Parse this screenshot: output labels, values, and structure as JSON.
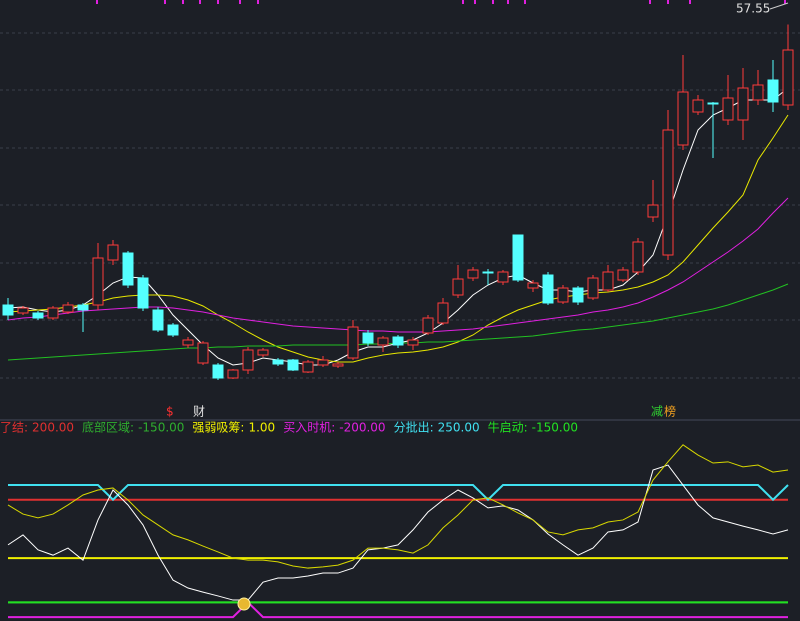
{
  "chart_data": [
    {
      "type": "candlestick",
      "open": [
        29.5,
        28.7,
        28.7,
        28.2,
        28.8,
        29.5,
        29.5,
        34.0,
        34.7,
        32.2,
        29.0,
        27.5,
        25.5,
        23.7,
        23.5,
        22.2,
        23.0,
        24.5,
        24.0,
        24.0,
        22.8,
        23.5,
        23.4,
        24.2,
        26.7,
        25.5,
        26.3,
        25.5,
        26.7,
        27.7,
        30.5,
        32.2,
        32.8,
        31.8,
        36.5,
        31.2,
        32.5,
        29.8,
        31.2,
        30.2,
        31.0,
        32.0,
        32.8,
        38.3,
        34.5,
        45.5,
        48.8,
        49.7,
        48.0,
        48.0,
        50.0,
        52.0,
        49.5
      ],
      "high": [
        30.2,
        29.4,
        28.9,
        29.4,
        29.8,
        29.7,
        35.7,
        36.0,
        34.9,
        32.5,
        29.3,
        27.7,
        26.3,
        25.9,
        23.7,
        23.1,
        25.3,
        25.2,
        24.2,
        24.1,
        24.0,
        24.4,
        23.8,
        28.0,
        27.0,
        26.4,
        26.5,
        26.3,
        28.5,
        30.2,
        33.5,
        33.3,
        33.1,
        33.0,
        36.5,
        32.0,
        32.8,
        31.5,
        31.4,
        32.5,
        33.5,
        33.3,
        36.2,
        42.0,
        49.0,
        54.5,
        50.5,
        49.8,
        52.5,
        53.2,
        53.0,
        54.0,
        57.55
      ],
      "low": [
        28.0,
        28.5,
        28.0,
        28.0,
        28.6,
        26.8,
        29.0,
        33.5,
        31.2,
        28.9,
        26.8,
        26.3,
        25.2,
        23.5,
        22.0,
        22.1,
        22.6,
        24.3,
        23.4,
        22.9,
        22.7,
        23.3,
        23.2,
        24.0,
        25.4,
        24.8,
        25.2,
        25.0,
        26.5,
        27.5,
        30.2,
        31.9,
        31.5,
        31.5,
        31.8,
        30.8,
        29.5,
        29.6,
        29.5,
        30.0,
        30.8,
        31.8,
        32.5,
        37.8,
        34.0,
        45.0,
        48.5,
        44.2,
        47.5,
        46.0,
        49.5,
        48.8,
        49.0
      ],
      "close": [
        28.5,
        29.2,
        28.2,
        29.2,
        29.5,
        29.0,
        34.2,
        35.5,
        31.5,
        29.2,
        27.0,
        26.5,
        26.0,
        25.7,
        22.2,
        23.0,
        25.0,
        25.0,
        23.6,
        23.0,
        23.8,
        24.0,
        23.6,
        27.3,
        25.7,
        26.2,
        25.5,
        26.0,
        28.2,
        29.7,
        32.1,
        33.0,
        32.7,
        32.8,
        32.0,
        31.7,
        29.7,
        31.2,
        29.8,
        32.2,
        32.8,
        33.0,
        35.8,
        39.5,
        47.0,
        50.8,
        50.0,
        49.6,
        50.2,
        51.2,
        51.5,
        49.8,
        55.0
      ],
      "up_color": "#ff3b3b",
      "down_color": "#54ffff",
      "max_label": "57.55",
      "ylim": [
        20,
        60
      ],
      "series": [
        {
          "color": "#ffffff",
          "values": [
            29.2,
            29.3,
            29.0,
            28.8,
            29.0,
            29.5,
            30.5,
            31.7,
            32.3,
            32.2,
            30.5,
            28.5,
            27.0,
            25.5,
            24.2,
            23.5,
            23.7,
            24.2,
            24.0,
            23.8,
            23.5,
            23.5,
            24.0,
            24.8,
            25.3,
            25.3,
            25.7,
            26.0,
            26.7,
            27.7,
            29.0,
            30.5,
            31.5,
            32.2,
            32.5,
            31.7,
            31.0,
            31.0,
            30.8,
            31.0,
            31.0,
            31.5,
            32.8,
            34.5,
            38.5,
            43.0,
            47.0,
            48.5,
            49.2,
            50.0,
            50.0,
            50.0,
            51.2
          ]
        },
        {
          "color": "#e8e800",
          "values": [
            28.8,
            28.9,
            29.0,
            29.1,
            29.3,
            29.5,
            29.8,
            30.2,
            30.4,
            30.5,
            30.5,
            30.4,
            30.0,
            29.4,
            28.5,
            27.7,
            26.8,
            26.0,
            25.3,
            24.8,
            24.3,
            24.0,
            23.8,
            23.8,
            24.2,
            24.5,
            24.7,
            24.8,
            25.0,
            25.3,
            25.8,
            26.5,
            27.5,
            28.3,
            29.0,
            29.5,
            30.0,
            30.3,
            30.5,
            30.7,
            30.8,
            31.0,
            31.3,
            31.8,
            32.5,
            33.8,
            35.5,
            37.2,
            38.8,
            40.5,
            44.0,
            46.2,
            48.5
          ]
        },
        {
          "color": "#e020e0",
          "values": [
            28.0,
            28.2,
            28.3,
            28.5,
            28.7,
            28.9,
            29.0,
            29.1,
            29.2,
            29.3,
            29.3,
            29.2,
            29.0,
            28.8,
            28.5,
            28.2,
            28.0,
            27.8,
            27.6,
            27.4,
            27.3,
            27.2,
            27.1,
            27.0,
            26.9,
            26.9,
            26.8,
            26.8,
            26.8,
            26.9,
            27.0,
            27.1,
            27.3,
            27.5,
            27.7,
            27.9,
            28.1,
            28.3,
            28.5,
            28.8,
            29.0,
            29.3,
            29.7,
            30.3,
            31.0,
            31.8,
            32.8,
            33.8,
            34.8,
            35.9,
            37.1,
            38.7,
            40.2
          ]
        },
        {
          "color": "#22c022",
          "values": [
            24.0,
            24.1,
            24.2,
            24.3,
            24.4,
            24.5,
            24.6,
            24.7,
            24.8,
            24.9,
            25.0,
            25.1,
            25.2,
            25.2,
            25.3,
            25.3,
            25.4,
            25.4,
            25.4,
            25.5,
            25.5,
            25.5,
            25.5,
            25.5,
            25.6,
            25.6,
            25.7,
            25.7,
            25.8,
            25.8,
            25.9,
            26.0,
            26.1,
            26.2,
            26.3,
            26.4,
            26.6,
            26.8,
            27.0,
            27.1,
            27.3,
            27.5,
            27.7,
            27.9,
            28.2,
            28.5,
            28.8,
            29.1,
            29.5,
            30.0,
            30.5,
            31.0,
            31.6
          ]
        }
      ],
      "annotations": [
        {
          "text": "$",
          "color": "#ff3030"
        },
        {
          "text": "财",
          "color": "#e0e0e0"
        },
        {
          "text": "减",
          "color": "#30d030"
        },
        {
          "text": "榜",
          "color": "#f0a020"
        }
      ]
    },
    {
      "type": "line",
      "ylim": [
        -210,
        400
      ],
      "series": [
        {
          "name": "了结:",
          "last_label": "200.00",
          "color": "#e03030",
          "values": [
            200,
            200,
            200,
            200,
            200,
            200,
            200,
            200,
            200,
            200,
            200,
            200,
            200,
            200,
            200,
            200,
            200,
            200,
            200,
            200,
            200,
            200,
            200,
            200,
            200,
            200,
            200,
            200,
            200,
            200,
            200,
            200,
            200,
            200,
            200,
            200,
            200,
            200,
            200,
            200,
            200,
            200,
            200,
            200,
            200,
            200,
            200,
            200,
            200,
            200,
            200,
            200,
            200
          ]
        },
        {
          "name": "底部区域:",
          "last_label": "-150.00",
          "color": "#2fae2f",
          "values": [
            -150,
            -150,
            -150,
            -150,
            -150,
            -150,
            -150,
            -150,
            -150,
            -150,
            -150,
            -150,
            -150,
            -150,
            -150,
            -150,
            -150,
            -150,
            -150,
            -150,
            -150,
            -150,
            -150,
            -150,
            -150,
            -150,
            -150,
            -150,
            -150,
            -150,
            -150,
            -150,
            -150,
            -150,
            -150,
            -150,
            -150,
            -150,
            -150,
            -150,
            -150,
            -150,
            -150,
            -150,
            -150,
            -150,
            -150,
            -150,
            -150,
            -150,
            -150,
            -150,
            -150
          ]
        },
        {
          "name": "强弱吸筹:",
          "last_label": "1.00",
          "color": "#f0f000",
          "values": [
            1,
            1,
            1,
            1,
            1,
            1,
            1,
            1,
            1,
            1,
            1,
            1,
            1,
            1,
            1,
            1,
            1,
            1,
            1,
            1,
            1,
            1,
            1,
            1,
            1,
            1,
            1,
            1,
            1,
            1,
            1,
            1,
            1,
            1,
            1,
            1,
            1,
            1,
            1,
            1,
            1,
            1,
            1,
            1,
            1,
            1,
            1,
            1,
            1,
            1,
            1,
            1,
            1
          ]
        },
        {
          "name": "买入时机:",
          "last_label": "-200.00",
          "color": "#e020e0",
          "values": [
            -200,
            -200,
            -200,
            -200,
            -200,
            -200,
            -200,
            -200,
            -200,
            -200,
            -200,
            -200,
            -200,
            -200,
            -200,
            -200,
            -150,
            -200,
            -200,
            -200,
            -200,
            -200,
            -200,
            -200,
            -200,
            -200,
            -200,
            -200,
            -200,
            -200,
            -200,
            -200,
            -200,
            -200,
            -200,
            -200,
            -200,
            -200,
            -200,
            -200,
            -200,
            -200,
            -200,
            -200,
            -200,
            -200,
            -200,
            -200,
            -200,
            -200,
            -200,
            -200,
            -200
          ]
        },
        {
          "name": "分批出:",
          "last_label": "250.00",
          "color": "#40e0f0",
          "values": [
            250,
            250,
            250,
            250,
            250,
            250,
            250,
            200,
            250,
            250,
            250,
            250,
            250,
            250,
            250,
            250,
            250,
            250,
            250,
            250,
            250,
            250,
            250,
            250,
            250,
            250,
            250,
            250,
            250,
            250,
            250,
            250,
            200,
            250,
            250,
            250,
            250,
            250,
            250,
            250,
            250,
            250,
            250,
            250,
            250,
            250,
            250,
            250,
            250,
            250,
            250,
            200,
            250
          ]
        },
        {
          "name": "牛启动:",
          "last_label": "-150.00",
          "color": "#22e022",
          "values": [
            -150,
            -150,
            -150,
            -150,
            -150,
            -150,
            -150,
            -150,
            -150,
            -150,
            -150,
            -150,
            -150,
            -150,
            -150,
            -150,
            -150,
            -150,
            -150,
            -150,
            -150,
            -150,
            -150,
            -150,
            -150,
            -150,
            -150,
            -150,
            -150,
            -150,
            -150,
            -150,
            -150,
            -150,
            -150,
            -150,
            -150,
            -150,
            -150,
            -150,
            -150,
            -150,
            -150,
            -150,
            -150,
            -150,
            -150,
            -150,
            -150,
            -150,
            -150,
            -150,
            -150
          ]
        },
        {
          "color": "#ffffff",
          "values": [
            46,
            80,
            29,
            11,
            35,
            -6,
            131,
            233,
            182,
            114,
            11,
            -74,
            -101,
            -115,
            -128,
            -142,
            -142,
            -81,
            -67,
            -67,
            -60,
            -50,
            -50,
            -33,
            29,
            35,
            46,
            97,
            158,
            199,
            233,
            206,
            172,
            179,
            165,
            131,
            83,
            46,
            11,
            35,
            90,
            97,
            124,
            301,
            318,
            250,
            182,
            138,
            124,
            110,
            97,
            83,
            97
          ]
        },
        {
          "color": "#d8d800",
          "values": [
            182,
            151,
            138,
            151,
            182,
            216,
            233,
            240,
            199,
            148,
            114,
            80,
            63,
            42,
            22,
            1,
            -6,
            -6,
            -12,
            -26,
            -33,
            -29,
            -23,
            -6,
            35,
            35,
            29,
            18,
            46,
            104,
            148,
            199,
            206,
            182,
            155,
            131,
            90,
            80,
            97,
            104,
            124,
            131,
            158,
            267,
            329,
            387,
            352,
            325,
            329,
            312,
            318,
            294,
            301
          ]
        }
      ]
    }
  ]
}
